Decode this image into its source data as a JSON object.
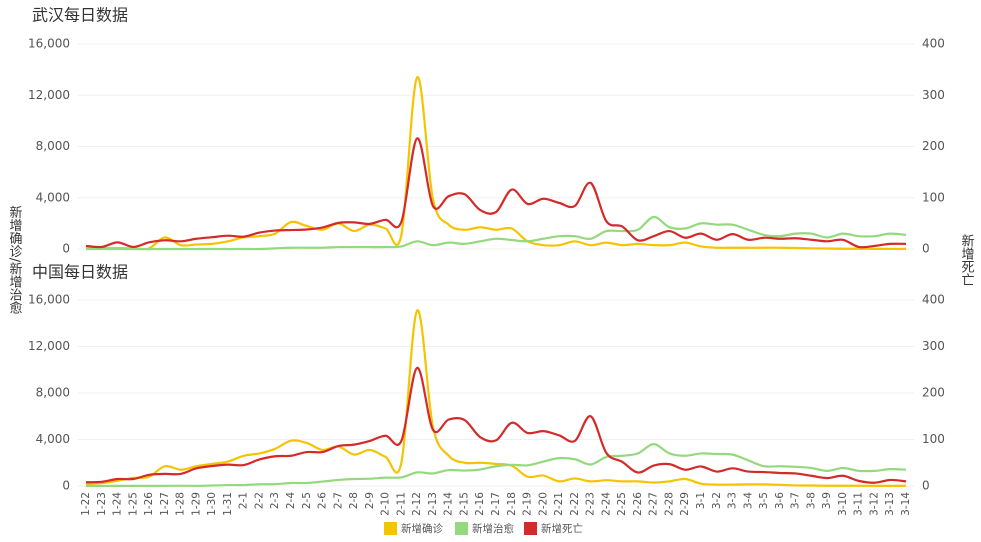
{
  "chart_data": [
    {
      "type": "line",
      "title": "武汉每日数据",
      "ylim": [
        0,
        16000
      ],
      "yticks": [
        0,
        {
          "value": 4000,
          "label": "4,000"
        },
        {
          "value": 8000,
          "label": "8,000"
        },
        {
          "value": 12000,
          "label": "12,000"
        },
        {
          "value": 16000,
          "label": "16,000"
        }
      ],
      "y2lim": [
        0,
        400
      ],
      "y2ticks": [
        0,
        100,
        200,
        300,
        400
      ],
      "grid": true,
      "series": [
        {
          "color": "#f5c400",
          "values": [
            100,
            70,
            80,
            50,
            50,
            900,
            300,
            350,
            400,
            600,
            900,
            1000,
            1200,
            2100,
            1800,
            1500,
            2000,
            1400,
            1900,
            1600,
            1100,
            13400,
            3900,
            1900,
            1500,
            1700,
            1500,
            1600,
            600,
            300,
            300,
            600,
            300,
            500,
            300,
            400,
            300,
            300,
            500,
            200,
            100,
            100,
            100,
            100,
            100,
            80,
            50,
            40,
            20,
            20,
            10,
            10,
            10
          ]
        },
        {
          "color": "#95d97f",
          "values": [
            0,
            0,
            0,
            0,
            0,
            0,
            0,
            0,
            0,
            0,
            0,
            0,
            50,
            100,
            100,
            100,
            150,
            150,
            150,
            150,
            200,
            600,
            300,
            500,
            400,
            600,
            800,
            700,
            600,
            800,
            1000,
            1000,
            800,
            1400,
            1400,
            1500,
            2500,
            1700,
            1600,
            2000,
            1900,
            1900,
            1500,
            1100,
            1000,
            1200,
            1200,
            900,
            1200,
            1000,
            1000,
            1200,
            1100
          ]
        },
        {
          "color": "#d42a2a",
          "axis": "y2",
          "values": [
            6,
            4,
            13,
            4,
            13,
            17,
            15,
            20,
            23,
            26,
            24,
            32,
            36,
            37,
            38,
            42,
            51,
            52,
            49,
            57,
            53,
            216,
            84,
            103,
            107,
            76,
            72,
            116,
            88,
            98,
            90,
            84,
            129,
            54,
            44,
            17,
            25,
            35,
            22,
            30,
            18,
            29,
            18,
            22,
            20,
            21,
            18,
            15,
            18,
            4,
            6,
            10,
            10
          ]
        }
      ]
    },
    {
      "type": "line",
      "title": "中国每日数据",
      "ylabel": "新增确诊/新增治愈",
      "y2label": "新增死亡",
      "categories": [
        "1-22",
        "1-23",
        "1-24",
        "1-25",
        "1-26",
        "1-27",
        "1-28",
        "1-29",
        "1-30",
        "1-31",
        "2-1",
        "2-2",
        "2-3",
        "2-4",
        "2-5",
        "2-6",
        "2-7",
        "2-8",
        "2-9",
        "2-10",
        "2-11",
        "2-12",
        "2-13",
        "2-14",
        "2-15",
        "2-16",
        "2-17",
        "2-18",
        "2-19",
        "2-20",
        "2-21",
        "2-22",
        "2-23",
        "2-24",
        "2-25",
        "2-26",
        "2-27",
        "2-28",
        "2-29",
        "3-1",
        "3-2",
        "3-3",
        "3-4",
        "3-5",
        "3-6",
        "3-7",
        "3-8",
        "3-9",
        "3-10",
        "3-11",
        "3-12",
        "3-13",
        "3-14"
      ],
      "ylim": [
        0,
        16000
      ],
      "yticks": [
        0,
        {
          "value": 4000,
          "label": "4,000"
        },
        {
          "value": 8000,
          "label": "8,000"
        },
        {
          "value": 12000,
          "label": "12,000"
        },
        {
          "value": 16000,
          "label": "16,000"
        }
      ],
      "y2lim": [
        0,
        400
      ],
      "y2ticks": [
        0,
        100,
        200,
        300,
        400
      ],
      "grid": true,
      "series": [
        {
          "name": "新增确诊",
          "color": "#f5c400",
          "values": [
            150,
            250,
            450,
            700,
            800,
            1700,
            1400,
            1700,
            1900,
            2100,
            2600,
            2800,
            3200,
            3900,
            3700,
            3100,
            3400,
            2700,
            3100,
            2500,
            2000,
            15100,
            5100,
            2600,
            2000,
            2000,
            1900,
            1750,
            800,
            900,
            400,
            650,
            400,
            500,
            400,
            400,
            300,
            400,
            600,
            200,
            120,
            120,
            140,
            140,
            100,
            50,
            40,
            20,
            20,
            20,
            10,
            10,
            20
          ]
        },
        {
          "name": "新增治愈",
          "color": "#95d97f",
          "values": [
            0,
            10,
            10,
            10,
            10,
            10,
            20,
            10,
            40,
            80,
            80,
            150,
            160,
            260,
            260,
            380,
            520,
            600,
            630,
            720,
            740,
            1170,
            1080,
            1370,
            1330,
            1420,
            1700,
            1820,
            1780,
            2100,
            2400,
            2300,
            1850,
            2500,
            2600,
            2800,
            3600,
            2800,
            2600,
            2800,
            2750,
            2700,
            2200,
            1700,
            1700,
            1650,
            1550,
            1300,
            1550,
            1300,
            1300,
            1450,
            1400
          ]
        },
        {
          "name": "新增死亡",
          "color": "#d42a2a",
          "axis": "y2",
          "values": [
            8,
            9,
            15,
            15,
            24,
            26,
            26,
            38,
            43,
            46,
            45,
            57,
            64,
            65,
            73,
            73,
            86,
            89,
            97,
            108,
            97,
            254,
            121,
            143,
            142,
            105,
            98,
            136,
            114,
            118,
            109,
            97,
            150,
            71,
            52,
            29,
            44,
            47,
            35,
            42,
            31,
            38,
            31,
            30,
            28,
            27,
            22,
            17,
            22,
            11,
            7,
            13,
            10
          ]
        }
      ]
    }
  ]
}
